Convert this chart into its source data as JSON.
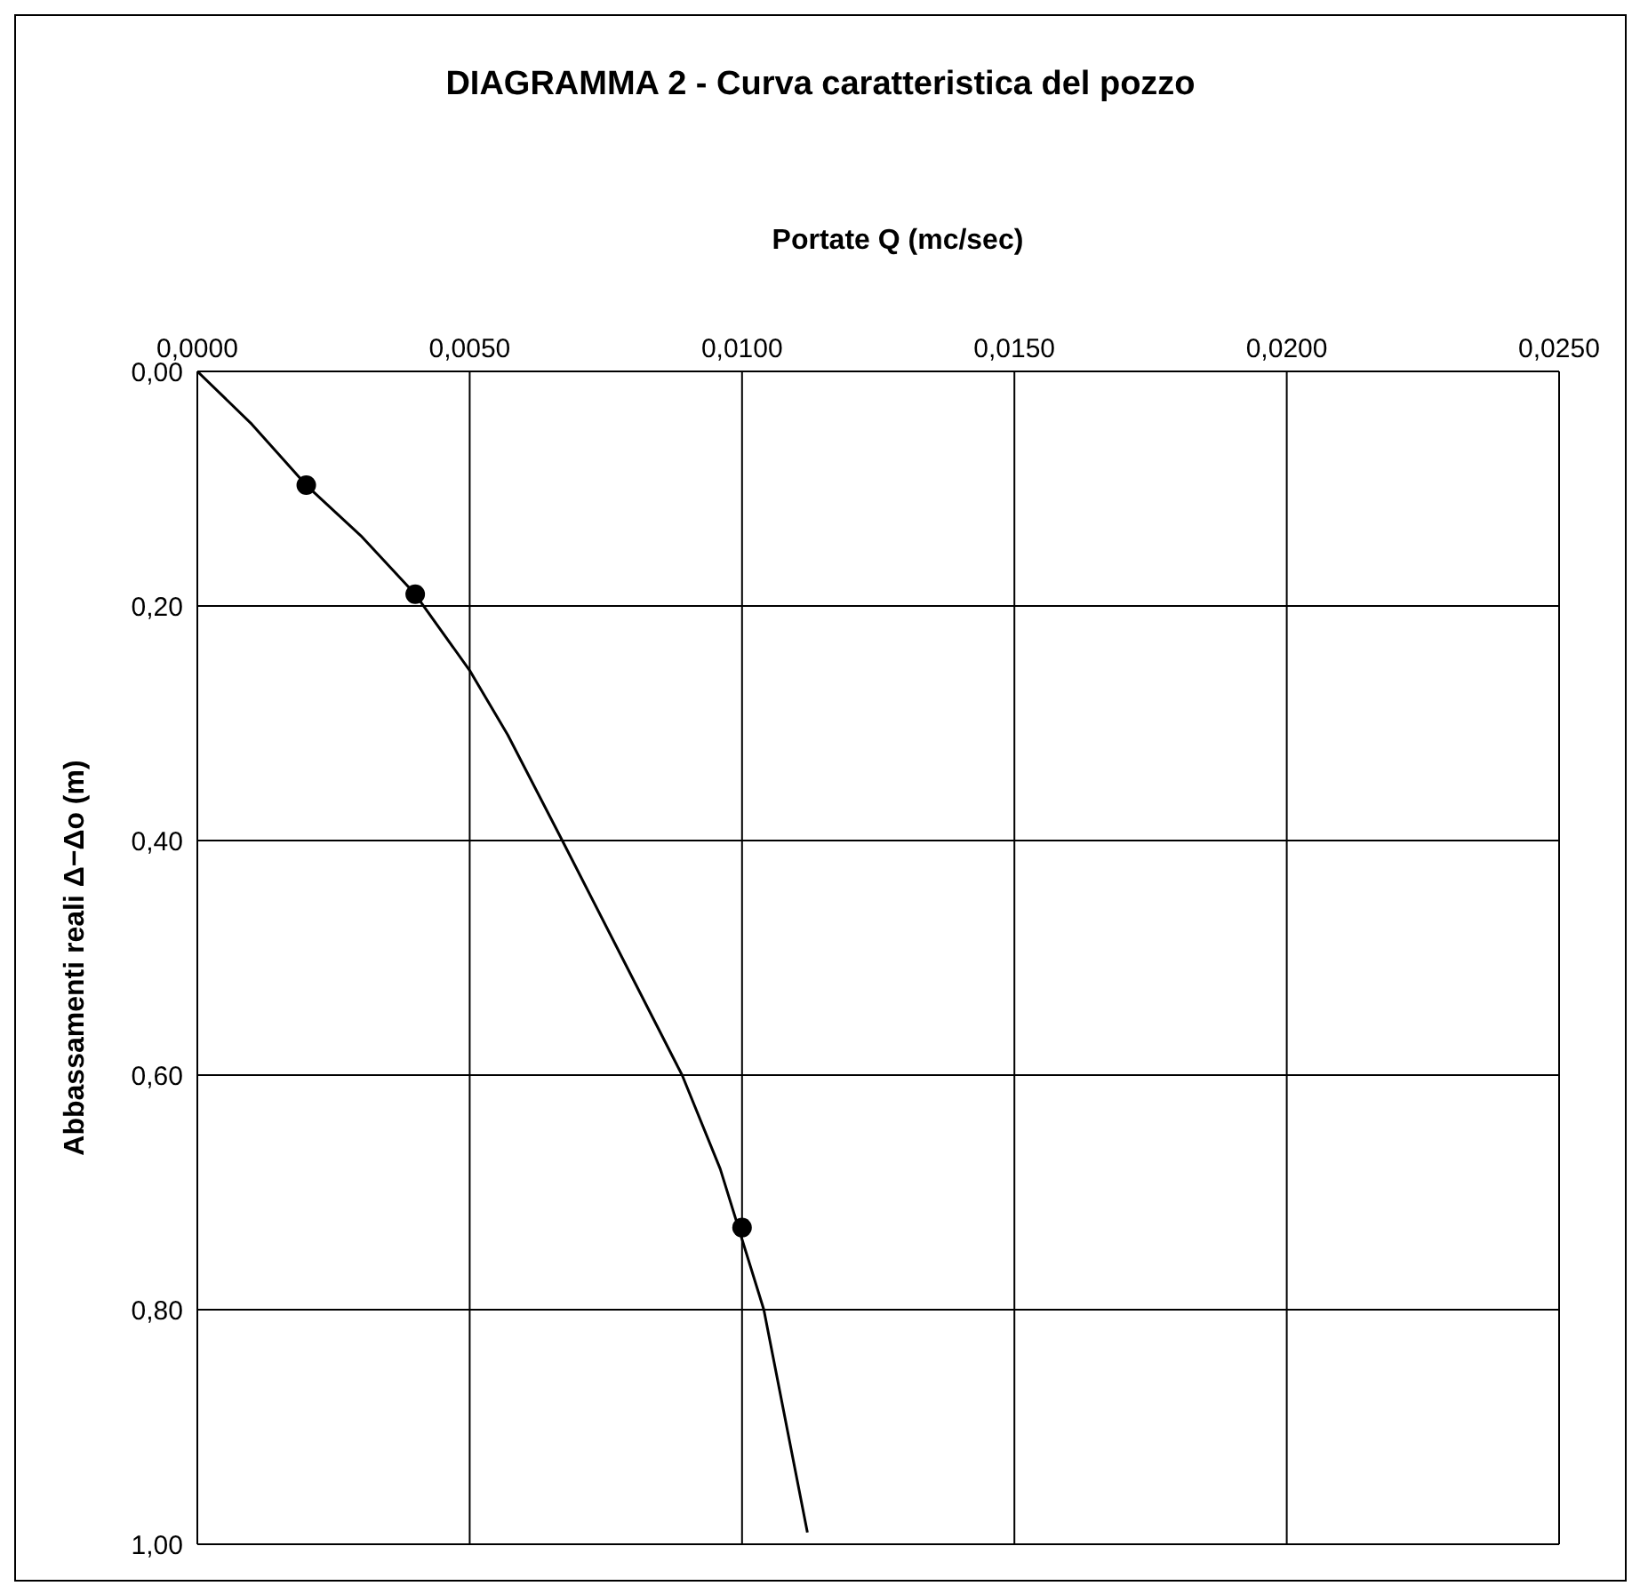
{
  "chart_data": {
    "type": "line",
    "title": "DIAGRAMMA 2 - Curva caratteristica del pozzo",
    "xlabel": "Portate Q (mc/sec)",
    "ylabel": "Abbassamenti reali  Δ−Δo (m)",
    "xlim": [
      0,
      0.025
    ],
    "xticks": [
      {
        "value": 0,
        "label": "0,0000"
      },
      {
        "value": 0.005,
        "label": "0,0050"
      },
      {
        "value": 0.01,
        "label": "0,0100"
      },
      {
        "value": 0.015,
        "label": "0,0150"
      },
      {
        "value": 0.02,
        "label": "0,0200"
      },
      {
        "value": 0.025,
        "label": "0,0250"
      }
    ],
    "ylim": [
      1,
      0
    ],
    "yticks": [
      {
        "value": 0,
        "label": "0,00"
      },
      {
        "value": 0.2,
        "label": "0,20"
      },
      {
        "value": 0.4,
        "label": "0,40"
      },
      {
        "value": 0.6,
        "label": "0,60"
      },
      {
        "value": 0.8,
        "label": "0,80"
      },
      {
        "value": 1,
        "label": "1,00"
      }
    ],
    "grid": true,
    "series": [
      {
        "type": "line",
        "color": "#000000",
        "marker": "none",
        "x": [
          0,
          0.001,
          0.002,
          0.003,
          0.004,
          0.005,
          0.0057,
          0.0067,
          0.0078,
          0.0089,
          0.0096,
          0.0104,
          0.0112
        ],
        "values": [
          0,
          0.045,
          0.097,
          0.14,
          0.19,
          0.255,
          0.31,
          0.4,
          0.5,
          0.6,
          0.68,
          0.8,
          0.99
        ]
      },
      {
        "type": "scatter",
        "color": "#000000",
        "marker": "circle",
        "x": [
          0.002,
          0.004,
          0.01
        ],
        "values": [
          0.097,
          0.19,
          0.73
        ]
      }
    ]
  }
}
